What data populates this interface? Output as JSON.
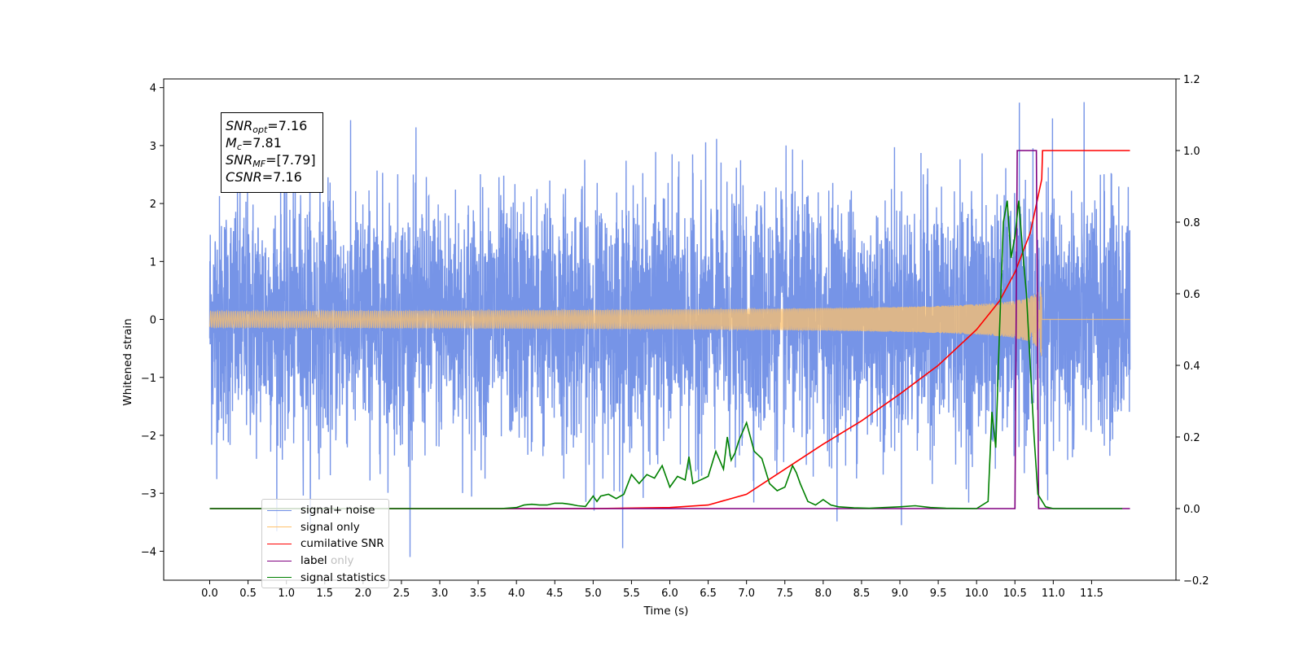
{
  "chart_data": {
    "type": "line",
    "xlabel": "Time (s)",
    "ylabel": "Whitened strain",
    "xticks": [
      "0.0",
      "0.5",
      "1.0",
      "1.5",
      "2.0",
      "2.5",
      "3.0",
      "3.5",
      "4.0",
      "4.5",
      "5.0",
      "5.5",
      "6.0",
      "6.5",
      "7.0",
      "7.5",
      "8.0",
      "8.5",
      "9.0",
      "9.5",
      "10.0",
      "10.5",
      "11.0",
      "11.5"
    ],
    "xtick_values": [
      0,
      0.5,
      1,
      1.5,
      2,
      2.5,
      3,
      3.5,
      4,
      4.5,
      5,
      5.5,
      6,
      6.5,
      7,
      7.5,
      8,
      8.5,
      9,
      9.5,
      10,
      10.5,
      11,
      11.5
    ],
    "xlim": [
      -0.6,
      12.6
    ],
    "ylim_left": [
      -4.5,
      4.15
    ],
    "ylim_right": [
      -0.2,
      1.2
    ],
    "yticks_left": [
      "−4",
      "−3",
      "−2",
      "−1",
      "0",
      "1",
      "2",
      "3",
      "4"
    ],
    "ytick_values_left": [
      -4,
      -3,
      -2,
      -1,
      0,
      1,
      2,
      3,
      4
    ],
    "yticks_right": [
      "−0.2",
      "0.0",
      "0.2",
      "0.4",
      "0.6",
      "0.8",
      "1.0",
      "1.2"
    ],
    "ytick_values_right": [
      -0.2,
      0,
      0.2,
      0.4,
      0.6,
      0.8,
      1.0,
      1.2
    ],
    "grid": false,
    "legend_position": "lower-left",
    "series": [
      {
        "name": "signal+ noise",
        "axis": "left",
        "color": "#6f8ee6",
        "kind": "noise",
        "x_range": [
          0,
          12.0
        ],
        "std": 1.05
      },
      {
        "name": "signal only",
        "axis": "left",
        "color": "#ffc26b",
        "kind": "chirp",
        "x_range": [
          0,
          12.0
        ],
        "merger_time": 10.85,
        "peak_amplitude": 0.75
      },
      {
        "name": "cumilative SNR",
        "axis": "right",
        "color": "#ff0000",
        "x": [
          0,
          5.0,
          6.0,
          6.5,
          7.0,
          7.5,
          8.0,
          8.5,
          9.0,
          9.5,
          10.0,
          10.3,
          10.5,
          10.7,
          10.85,
          10.86,
          12.0
        ],
        "y": [
          0,
          0,
          0.003,
          0.01,
          0.04,
          0.11,
          0.18,
          0.245,
          0.32,
          0.4,
          0.5,
          0.58,
          0.66,
          0.77,
          0.92,
          1.0,
          1.0
        ]
      },
      {
        "name": "label",
        "axis": "right",
        "color": "#800080",
        "x": [
          0,
          10.5,
          10.53,
          10.78,
          10.81,
          12.0
        ],
        "y": [
          0,
          0,
          1.0,
          1.0,
          0,
          0
        ]
      },
      {
        "name": "signal statistics",
        "axis": "right",
        "color": "#008000",
        "x": [
          0,
          3.8,
          4.0,
          4.1,
          4.2,
          4.3,
          4.4,
          4.5,
          4.6,
          4.7,
          4.8,
          4.9,
          5.0,
          5.05,
          5.1,
          5.2,
          5.3,
          5.4,
          5.5,
          5.6,
          5.7,
          5.8,
          5.9,
          6.0,
          6.1,
          6.2,
          6.25,
          6.3,
          6.4,
          6.5,
          6.6,
          6.7,
          6.75,
          6.8,
          6.85,
          6.9,
          7.0,
          7.1,
          7.2,
          7.3,
          7.4,
          7.5,
          7.6,
          7.65,
          7.7,
          7.8,
          7.9,
          8.0,
          8.1,
          8.2,
          8.4,
          8.6,
          9.0,
          9.2,
          9.4,
          9.6,
          10.0,
          10.15,
          10.2,
          10.25,
          10.3,
          10.35,
          10.4,
          10.45,
          10.5,
          10.55,
          10.6,
          10.65,
          10.7,
          10.75,
          10.8,
          10.9,
          11.0,
          11.1,
          11.9
        ],
        "y": [
          0,
          0,
          0.003,
          0.01,
          0.012,
          0.01,
          0.01,
          0.015,
          0.015,
          0.012,
          0.008,
          0.006,
          0.035,
          0.02,
          0.035,
          0.04,
          0.028,
          0.04,
          0.095,
          0.07,
          0.095,
          0.085,
          0.12,
          0.06,
          0.09,
          0.08,
          0.145,
          0.07,
          0.08,
          0.09,
          0.16,
          0.11,
          0.2,
          0.135,
          0.155,
          0.19,
          0.24,
          0.16,
          0.14,
          0.07,
          0.05,
          0.06,
          0.12,
          0.1,
          0.07,
          0.02,
          0.01,
          0.025,
          0.01,
          0.005,
          0.002,
          0.001,
          0.005,
          0.008,
          0.003,
          0.001,
          0.0,
          0.02,
          0.27,
          0.17,
          0.5,
          0.8,
          0.86,
          0.7,
          0.76,
          0.86,
          0.72,
          0.6,
          0.4,
          0.2,
          0.04,
          0.005,
          0.0,
          0,
          0
        ]
      }
    ],
    "annotation": {
      "snr_opt_label": "SNR",
      "snr_opt_sub": "opt",
      "snr_opt_value": "=7.16",
      "mc_label": "M",
      "mc_sub": "c",
      "mc_value": "=7.81",
      "snr_mf_label": "SNR",
      "snr_mf_sub": "MF",
      "snr_mf_value": "=[7.79]",
      "csnr_label": "CSNR",
      "csnr_value": "=7.16"
    },
    "legend_overlap_text": "label only"
  }
}
